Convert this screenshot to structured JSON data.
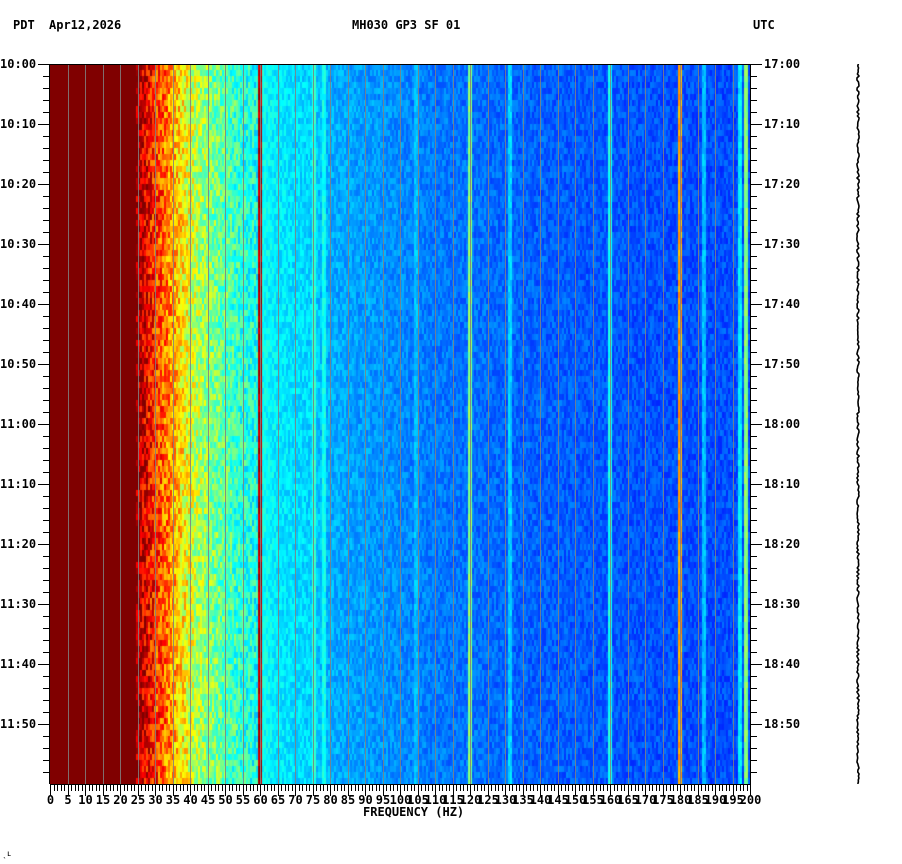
{
  "header": {
    "left_timezone": "PDT",
    "date": "Apr12,2026",
    "station": "MH030 GP3 SF 01",
    "right_timezone": "UTC"
  },
  "corner_mark": "ˎʟ",
  "chart_data": {
    "type": "heatmap",
    "title": "MH030 GP3 SF 01",
    "subtitle": "Apr12,2026",
    "xlabel": "FREQUENCY (HZ)",
    "ylabel_left": "PDT",
    "ylabel_right": "UTC",
    "xlim": [
      0,
      200
    ],
    "x_ticks": [
      0,
      5,
      10,
      15,
      20,
      25,
      30,
      35,
      40,
      45,
      50,
      55,
      60,
      65,
      70,
      75,
      80,
      85,
      90,
      95,
      100,
      105,
      110,
      115,
      120,
      125,
      130,
      135,
      140,
      145,
      150,
      155,
      160,
      165,
      170,
      175,
      180,
      185,
      190,
      195,
      200
    ],
    "x_minor_tick_step": 1,
    "y_ticks_left": [
      "10:00",
      "10:10",
      "10:20",
      "10:30",
      "10:40",
      "10:50",
      "11:00",
      "11:10",
      "11:20",
      "11:30",
      "11:40",
      "11:50"
    ],
    "y_ticks_right": [
      "17:00",
      "17:10",
      "17:20",
      "17:30",
      "17:40",
      "17:50",
      "18:00",
      "18:10",
      "18:20",
      "18:30",
      "18:40",
      "18:50"
    ],
    "y_range_minutes": 120,
    "y_minor_tick_step_min": 2,
    "grid": "vertical gridlines every 5 Hz",
    "colormap": "jet",
    "color_scale": [
      "#000080",
      "#0000ff",
      "#00a0ff",
      "#00ffff",
      "#80ff80",
      "#ffff00",
      "#ff8000",
      "#ff0000",
      "#800000"
    ],
    "intensity_profile": {
      "description": "relative power (0=dark blue, 1=dark red) vs frequency, roughly constant over time",
      "freq_hz": [
        0,
        24,
        26,
        30,
        35,
        40,
        45,
        50,
        55,
        60,
        65,
        75,
        80,
        90,
        100,
        110,
        120,
        140,
        160,
        180,
        200
      ],
      "level": [
        1.0,
        1.0,
        0.95,
        0.85,
        0.75,
        0.63,
        0.55,
        0.5,
        0.45,
        0.42,
        0.38,
        0.35,
        0.31,
        0.29,
        0.27,
        0.25,
        0.24,
        0.22,
        0.21,
        0.2,
        0.2
      ]
    },
    "narrowband_lines_hz": [
      {
        "f": 59.9,
        "level": 0.95
      },
      {
        "f": 75.5,
        "level": 0.45
      },
      {
        "f": 78.5,
        "level": 0.42
      },
      {
        "f": 104.5,
        "level": 0.33
      },
      {
        "f": 120.0,
        "level": 0.55
      },
      {
        "f": 131.5,
        "level": 0.35
      },
      {
        "f": 160.0,
        "level": 0.42
      },
      {
        "f": 179.9,
        "level": 0.75
      },
      {
        "f": 187.0,
        "level": 0.33
      },
      {
        "f": 197.0,
        "level": 0.38
      },
      {
        "f": 199.0,
        "level": 0.55
      }
    ]
  },
  "trace": {
    "label": "seismogram trace",
    "color": "#000000"
  }
}
